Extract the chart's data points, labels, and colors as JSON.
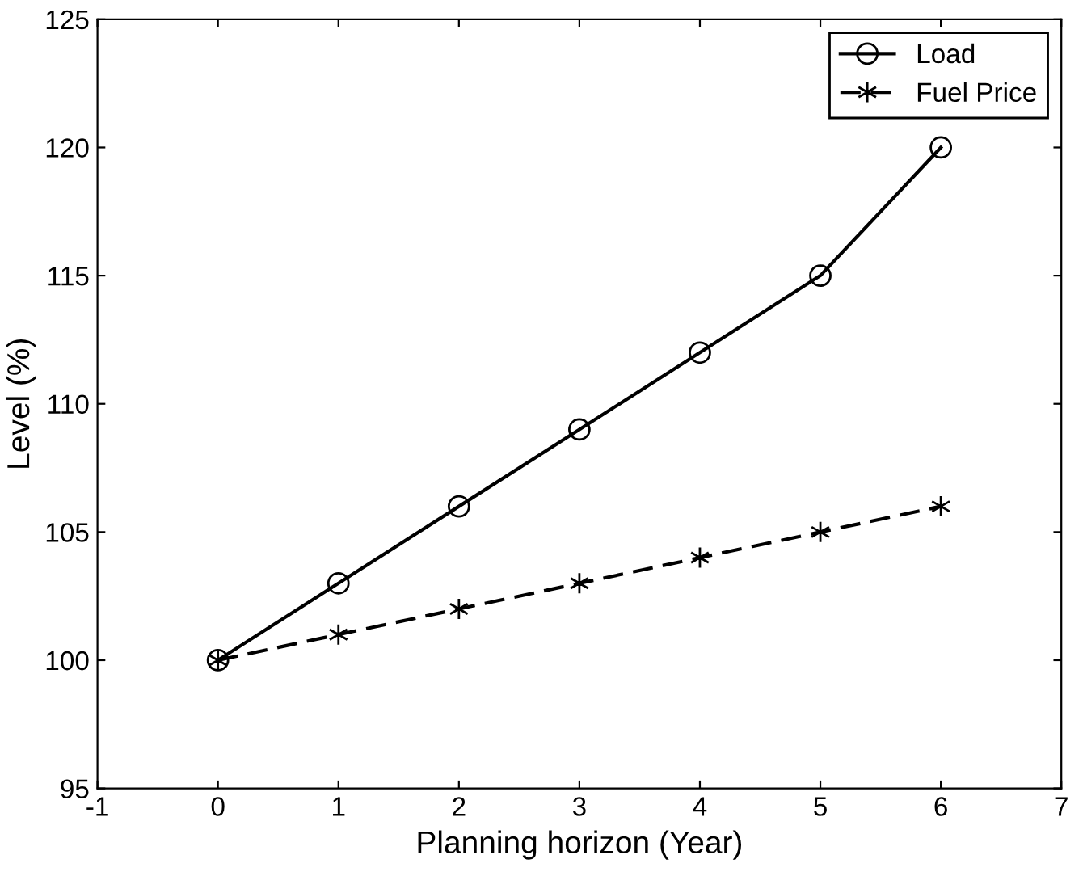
{
  "chart_data": {
    "type": "line",
    "xlabel": "Planning horizon (Year)",
    "ylabel": "Level (%)",
    "x": [
      0,
      1,
      2,
      3,
      4,
      5,
      6
    ],
    "series": [
      {
        "name": "Load",
        "color": "#000000",
        "values": [
          100,
          103,
          106,
          109,
          112,
          115,
          120
        ],
        "marker": "circle",
        "line_style": "solid"
      },
      {
        "name": "Fuel Price",
        "color": "#000000",
        "values": [
          100,
          101,
          102,
          103,
          104,
          105,
          106
        ],
        "marker": "cross",
        "line_style": "dashed"
      }
    ],
    "xlim": [
      -1,
      7
    ],
    "xticks": [
      -1,
      0,
      1,
      2,
      3,
      4,
      5,
      6,
      7
    ],
    "ylim": [
      95,
      125
    ],
    "yticks": [
      95,
      100,
      105,
      110,
      115,
      120,
      125
    ],
    "grid": false,
    "legend": "top right"
  }
}
